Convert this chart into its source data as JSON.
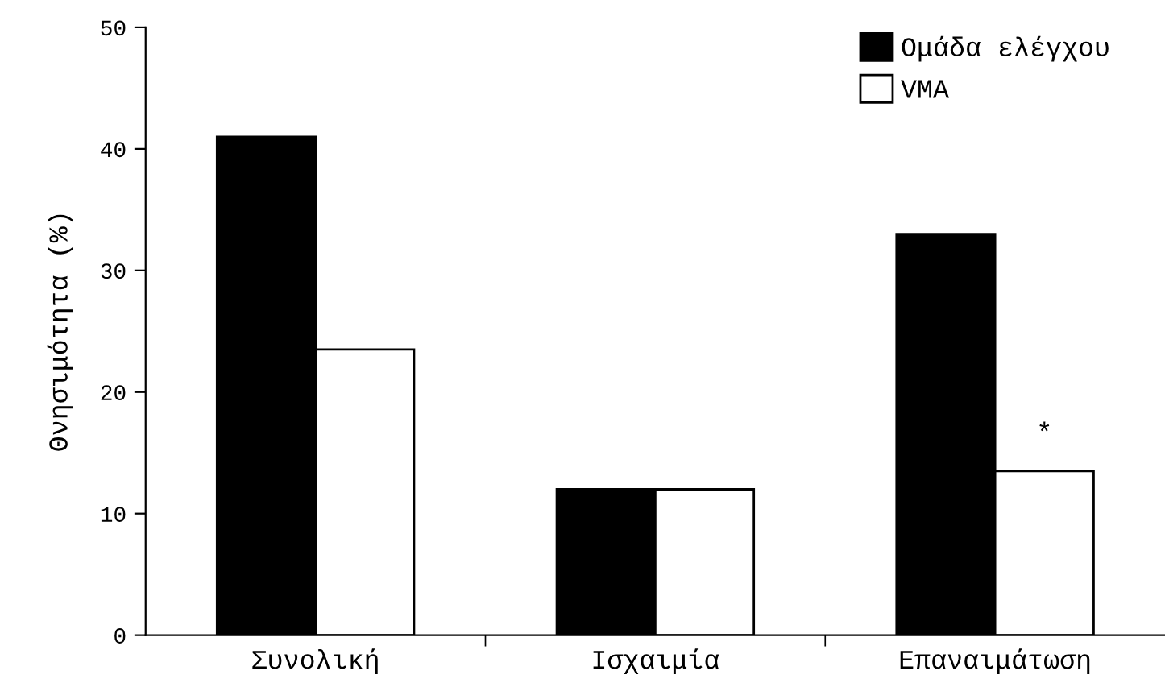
{
  "chart_data": {
    "type": "bar",
    "ylabel": "Θνησιμότητα (%)",
    "categories": [
      "Συνολική",
      "Ισχαιμία",
      "Επαναιμάτωση"
    ],
    "series": [
      {
        "name": "Ομάδα ελέγχου",
        "color": "#000000",
        "values": [
          41.0,
          12.0,
          33.0
        ]
      },
      {
        "name": "VMA",
        "color": "#ffffff",
        "values": [
          23.5,
          12.0,
          13.5
        ]
      }
    ],
    "ylim": [
      0,
      50
    ],
    "yticks": [
      0,
      10,
      20,
      30,
      40,
      50
    ],
    "grid": false,
    "legend": "top right",
    "annotations": [
      {
        "text": "*",
        "x": "Επαναιμάτωση",
        "y": 15.5
      }
    ]
  }
}
